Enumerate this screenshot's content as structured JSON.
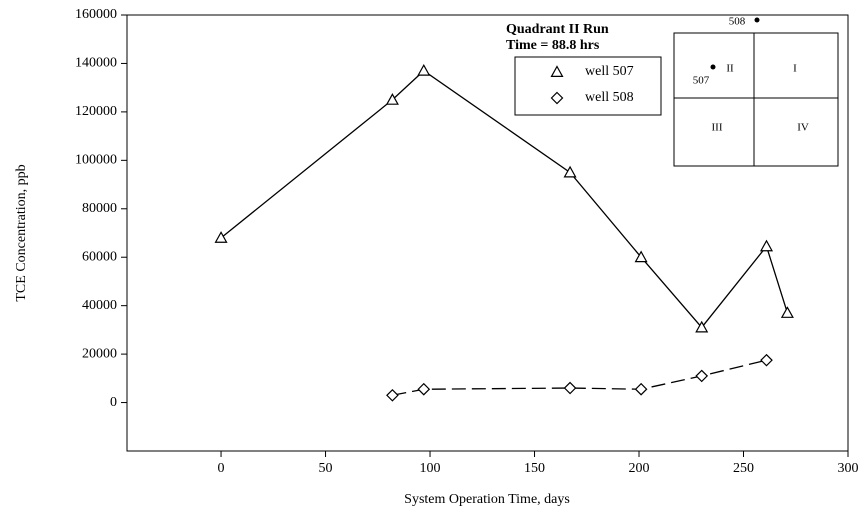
{
  "chart_data": {
    "type": "line",
    "x_label": "System Operation Time, days",
    "y_label": "TCE Concentration, ppb",
    "xlim": [
      -45,
      300
    ],
    "xticks": [
      0,
      50,
      100,
      150,
      200,
      250,
      300
    ],
    "ylim": [
      -20000,
      160000
    ],
    "yticks": [
      0,
      20000,
      40000,
      60000,
      80000,
      100000,
      120000,
      140000,
      160000
    ],
    "series": [
      {
        "name": "well 507",
        "color": "#000000",
        "marker": "triangle",
        "dash": "solid",
        "x": [
          0,
          82,
          97,
          167,
          201,
          230,
          261,
          271
        ],
        "values": [
          68000,
          125000,
          137000,
          95000,
          60000,
          31000,
          64500,
          37000
        ]
      },
      {
        "name": "well 508",
        "color": "#000000",
        "marker": "diamond",
        "dash": "dashed",
        "x": [
          82,
          97,
          167,
          201,
          230,
          261
        ],
        "values": [
          3000,
          5500,
          6000,
          5500,
          11000,
          17500
        ]
      }
    ],
    "inset": {
      "title_lines": [
        "Quadrant II Run",
        "Time = 88.8 hrs"
      ],
      "quadrants": [
        "II",
        "I",
        "III",
        "IV"
      ],
      "wells": [
        "508",
        "507"
      ]
    }
  }
}
